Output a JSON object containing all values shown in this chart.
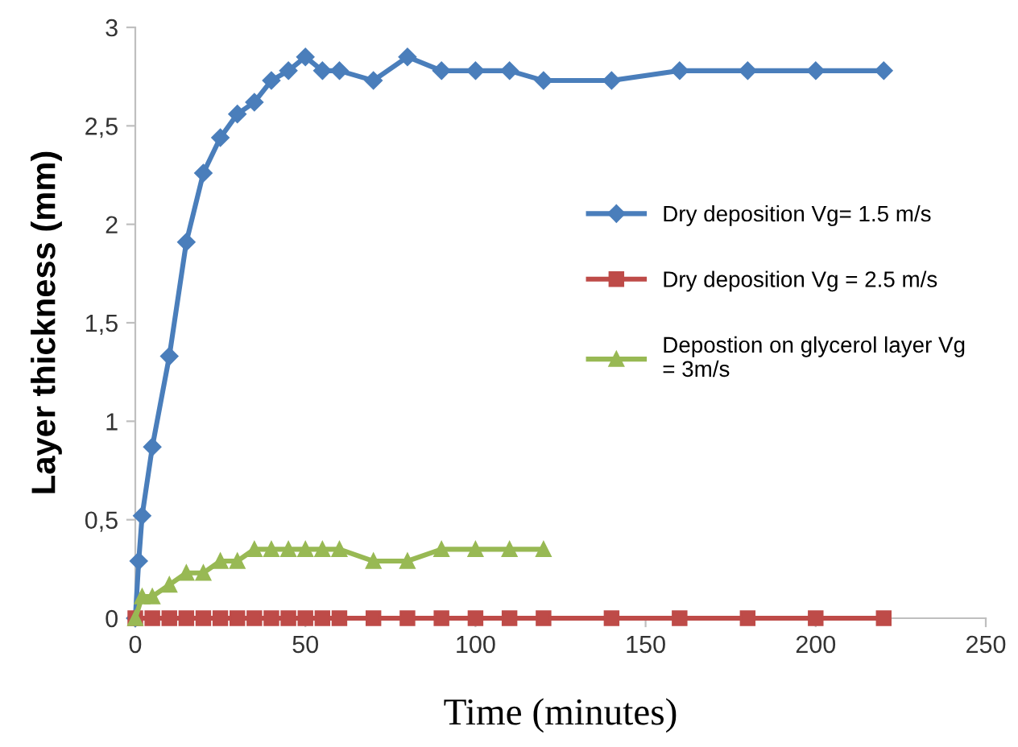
{
  "chart_data": {
    "type": "line",
    "xlabel": "Time (minutes)",
    "ylabel": "Layer thickness (mm)",
    "xlim": [
      0,
      250
    ],
    "xticks": [
      0,
      50,
      100,
      150,
      200,
      250
    ],
    "ylim": [
      0,
      3
    ],
    "yticks": [
      0,
      {
        "value": 0.5,
        "label": "0,5"
      },
      1,
      {
        "value": 1.5,
        "label": "1,5"
      },
      2,
      {
        "value": 2.5,
        "label": "2,5"
      },
      3
    ],
    "grid": false,
    "legend": "right",
    "series": [
      {
        "name": "Dry deposition Vg= 1.5 m/s",
        "color": "#4a7ebb",
        "marker": "diamond",
        "x": [
          0,
          1,
          2,
          5,
          10,
          15,
          20,
          25,
          30,
          35,
          40,
          45,
          50,
          55,
          60,
          70,
          80,
          90,
          100,
          110,
          120,
          140,
          160,
          180,
          200,
          220
        ],
        "values": [
          0,
          0.29,
          0.52,
          0.87,
          1.33,
          1.91,
          2.26,
          2.44,
          2.56,
          2.62,
          2.73,
          2.78,
          2.85,
          2.78,
          2.78,
          2.73,
          2.85,
          2.78,
          2.78,
          2.78,
          2.73,
          2.73,
          2.78,
          2.78,
          2.78,
          2.78
        ]
      },
      {
        "name": "Dry deposition Vg = 2.5 m/s",
        "color": "#be4b48",
        "marker": "square",
        "x": [
          0,
          5,
          10,
          15,
          20,
          25,
          30,
          35,
          40,
          45,
          50,
          55,
          60,
          70,
          80,
          90,
          100,
          110,
          120,
          140,
          160,
          180,
          200,
          220
        ],
        "values": [
          0,
          0,
          0,
          0,
          0,
          0,
          0,
          0,
          0,
          0,
          0,
          0,
          0,
          0,
          0,
          0,
          0,
          0,
          0,
          0,
          0,
          0,
          0,
          0
        ]
      },
      {
        "name": "Depostion on glycerol layer Vg\n= 3m/s",
        "color": "#98b954",
        "marker": "triangle",
        "x": [
          0,
          2,
          5,
          10,
          15,
          20,
          25,
          30,
          35,
          40,
          45,
          50,
          55,
          60,
          70,
          80,
          90,
          100,
          110,
          120
        ],
        "values": [
          0,
          0.11,
          0.11,
          0.17,
          0.23,
          0.23,
          0.29,
          0.29,
          0.35,
          0.35,
          0.35,
          0.35,
          0.35,
          0.35,
          0.29,
          0.29,
          0.35,
          0.35,
          0.35,
          0.35
        ]
      }
    ]
  }
}
